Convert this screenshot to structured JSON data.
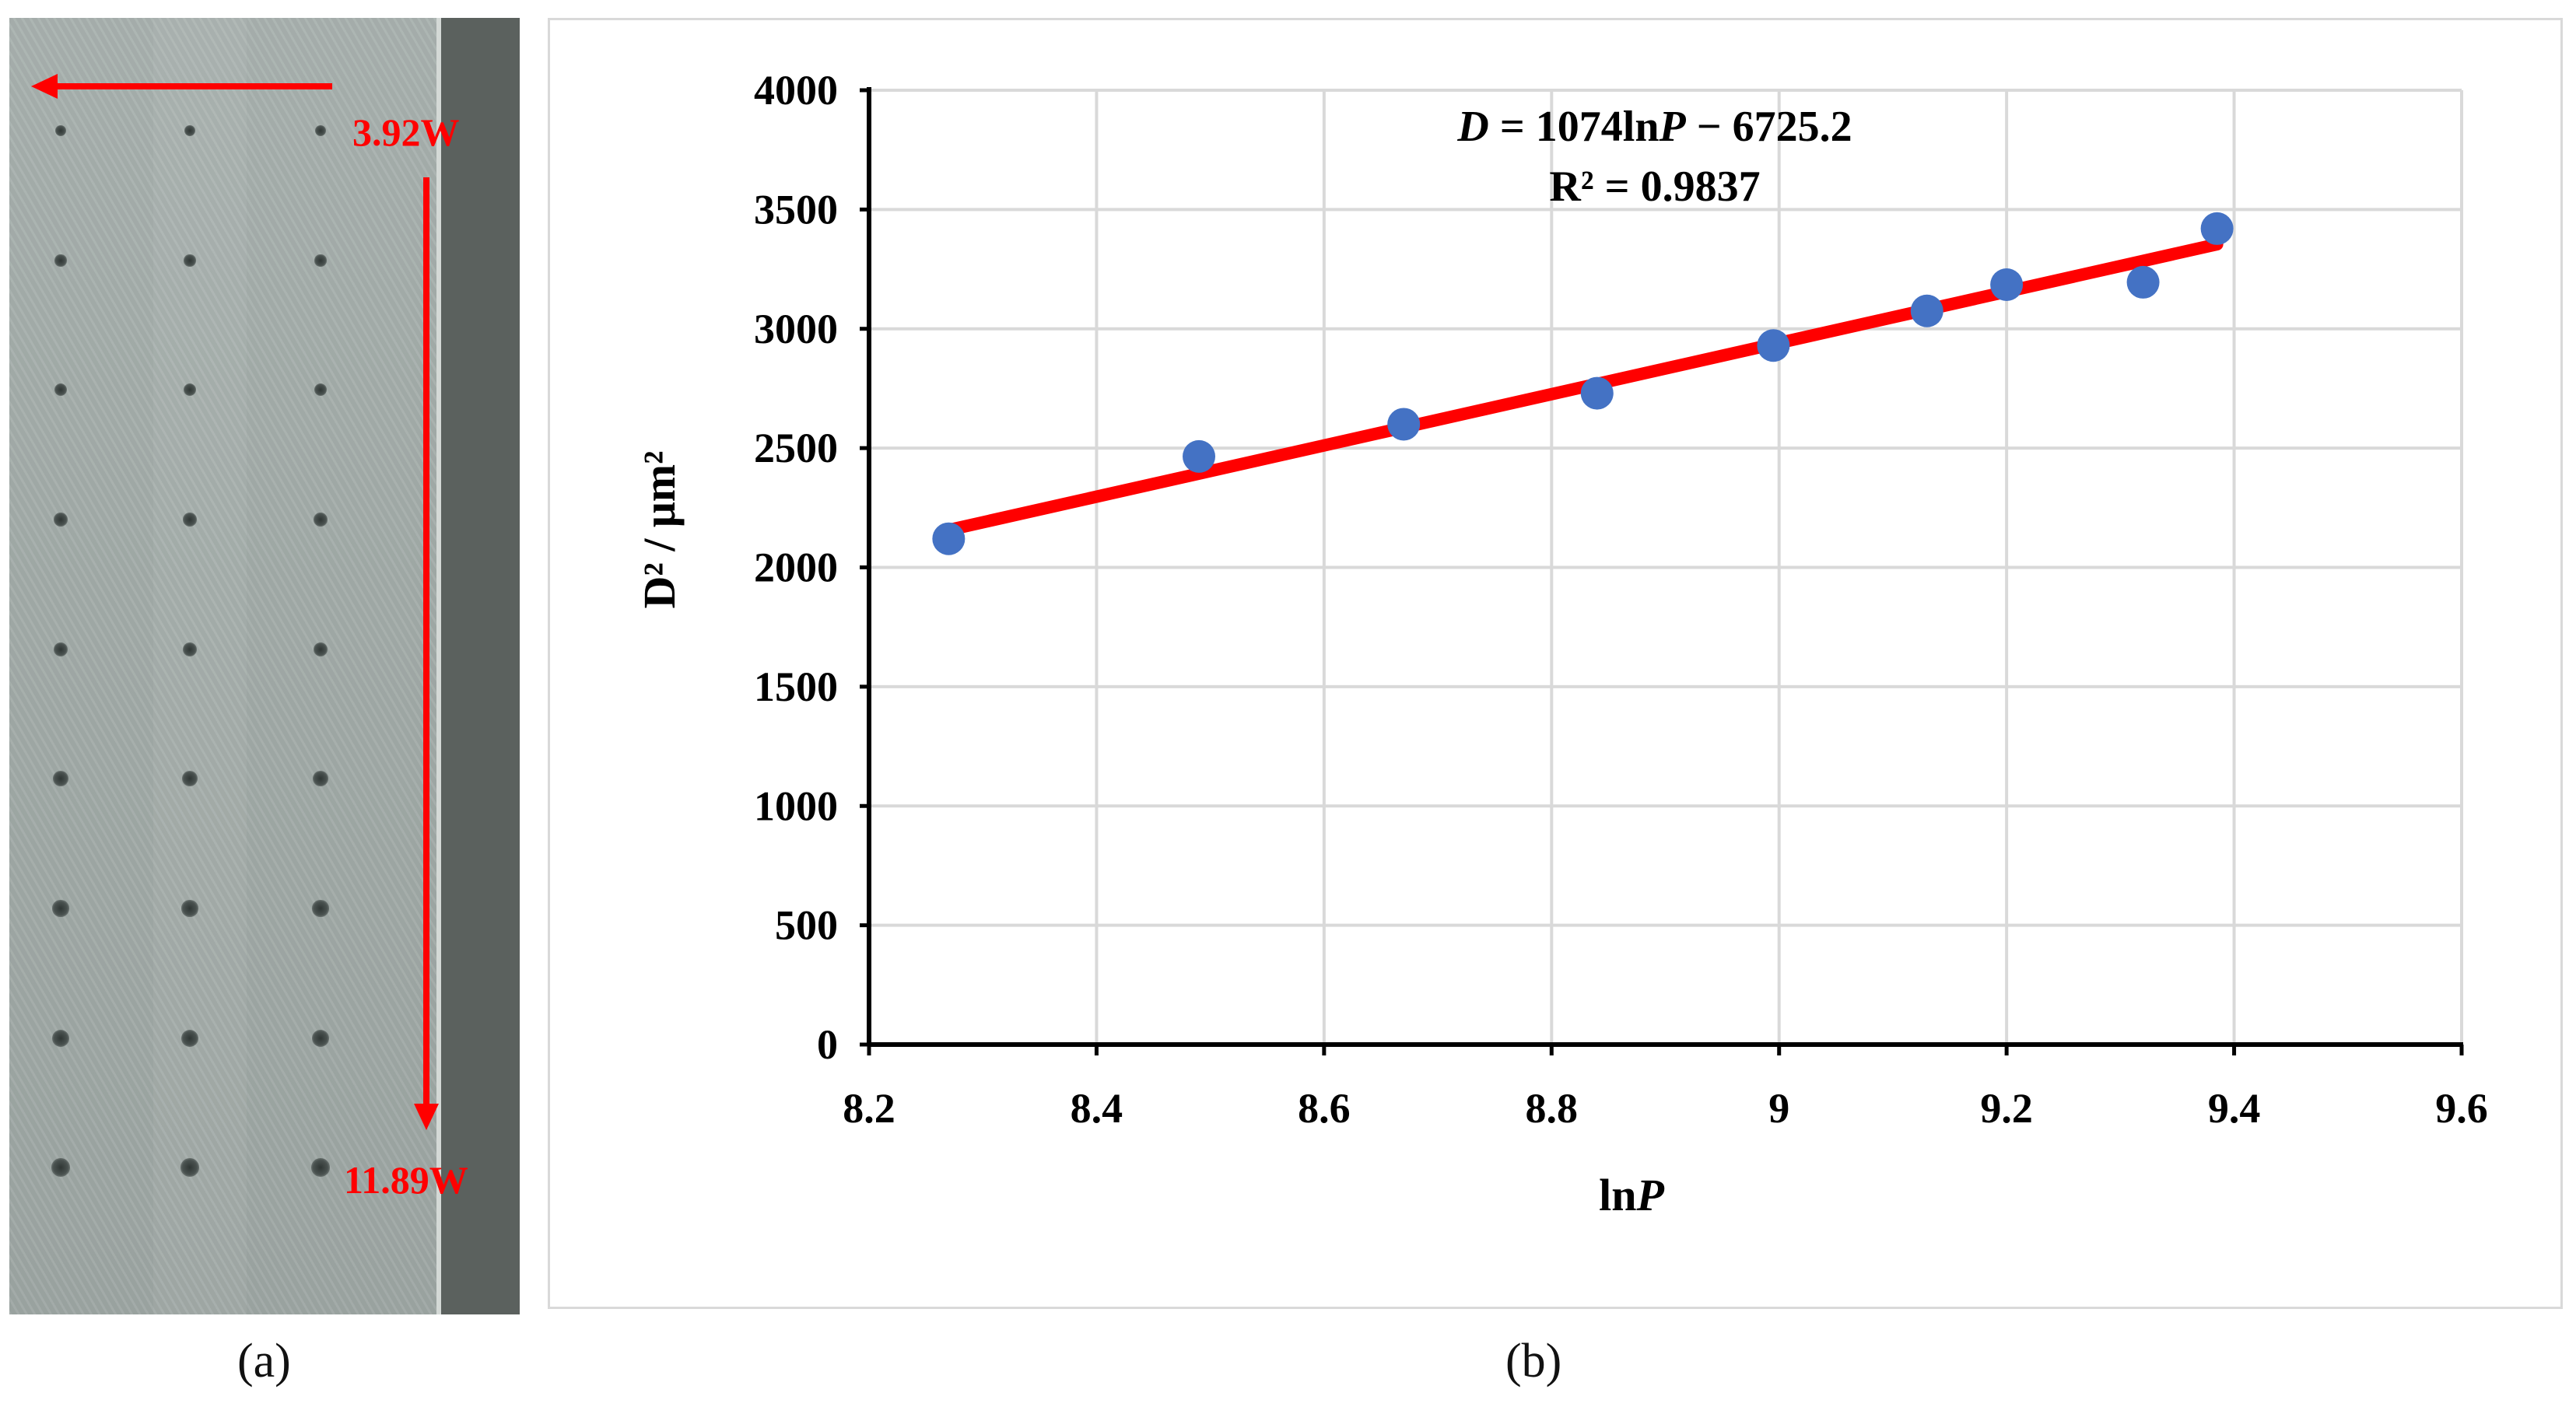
{
  "panel_a": {
    "label": "(a)",
    "power_start_label": "3.92W",
    "power_end_label": "11.89W",
    "colors": {
      "arrow": "#ff0000",
      "specimen": "#a6afac",
      "edge": "#5b615e"
    }
  },
  "panel_b": {
    "label": "(b)"
  },
  "chart_data": {
    "type": "scatter",
    "xlabel": {
      "prefix": "ln",
      "italic": "P"
    },
    "ylabel": "D² / μm²",
    "xlim": [
      8.2,
      9.6
    ],
    "ylim": [
      0,
      4000
    ],
    "xticks": [
      "8.2",
      "8.4",
      "8.6",
      "8.8",
      "9",
      "9.2",
      "9.4",
      "9.6"
    ],
    "yticks": [
      "0",
      "500",
      "1000",
      "1500",
      "2000",
      "2500",
      "3000",
      "3500",
      "4000"
    ],
    "grid": true,
    "series": [
      {
        "x": [
          8.27,
          8.49,
          8.67,
          8.84,
          8.995,
          9.13,
          9.2,
          9.32,
          9.385
        ],
        "y": [
          2120,
          2465,
          2600,
          2730,
          2930,
          3075,
          3185,
          3195,
          3420
        ],
        "color": "#4472c4"
      }
    ],
    "trendline": {
      "x": [
        8.27,
        9.385
      ],
      "slope": 1074,
      "intercept": -6725.2,
      "color": "#ff0000"
    },
    "annotations": {
      "equation": {
        "var": "D",
        "rest": " = 1074ln",
        "p": "P",
        "tail": " − 6725.2"
      },
      "r2": "R² = 0.9837"
    }
  }
}
